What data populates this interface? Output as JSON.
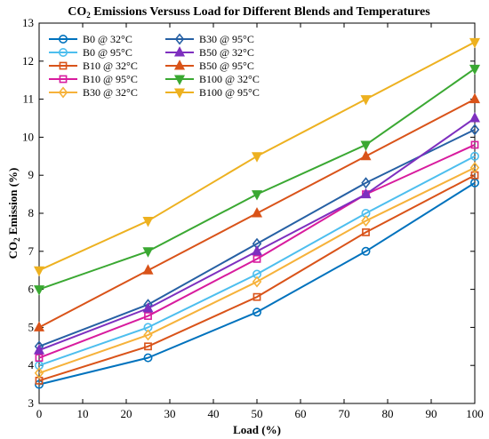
{
  "chart_data": {
    "type": "line",
    "title_main": "CO",
    "title_sub": "2",
    "title_rest": " Emissions Versuss Load for Different Blends and Temperatures",
    "xlabel": "Load (%)",
    "ylabel_main": "CO",
    "ylabel_sub": "2",
    "ylabel_rest": " Emission  (%)",
    "xlim": [
      0,
      100
    ],
    "ylim": [
      3,
      13
    ],
    "xticks": [
      0,
      10,
      20,
      30,
      40,
      50,
      60,
      70,
      80,
      90,
      100
    ],
    "yticks": [
      3,
      4,
      5,
      6,
      7,
      8,
      9,
      10,
      11,
      12,
      13
    ],
    "grid": false,
    "legend_position": "top-left",
    "x": [
      0,
      25,
      50,
      75,
      100
    ],
    "series": [
      {
        "name": "B0 @ 32°C",
        "color": "#0072BD",
        "marker": "circle",
        "values": [
          3.5,
          4.2,
          5.4,
          7.0,
          8.8
        ]
      },
      {
        "name": "B0 @ 95°C",
        "color": "#4DBEEE",
        "marker": "circle",
        "values": [
          4.0,
          5.0,
          6.4,
          8.0,
          9.5
        ]
      },
      {
        "name": "B10 @ 32°C",
        "color": "#D95319",
        "marker": "square",
        "values": [
          3.6,
          4.5,
          5.8,
          7.5,
          9.0
        ]
      },
      {
        "name": "B10 @ 95°C",
        "color": "#D81B9E",
        "marker": "square",
        "values": [
          4.2,
          5.3,
          6.8,
          8.5,
          9.8
        ]
      },
      {
        "name": "B30 @ 32°C",
        "color": "#F6B23A",
        "marker": "diamond",
        "values": [
          3.8,
          4.8,
          6.2,
          7.8,
          9.2
        ]
      },
      {
        "name": "B30 @ 95°C",
        "color": "#2660A4",
        "marker": "diamond",
        "values": [
          4.5,
          5.6,
          7.2,
          8.8,
          10.2
        ]
      },
      {
        "name": "B50 @ 32°C",
        "color": "#7E2FBF",
        "marker": "triangle-up",
        "values": [
          4.4,
          5.5,
          7.0,
          8.5,
          10.5
        ]
      },
      {
        "name": "B50 @ 95°C",
        "color": "#D95319",
        "marker": "triangle-up",
        "values": [
          5.0,
          6.5,
          8.0,
          9.5,
          11.0
        ]
      },
      {
        "name": "B100 @ 32°C",
        "color": "#3AA832",
        "marker": "triangle-down",
        "values": [
          6.0,
          7.0,
          8.5,
          9.8,
          11.8
        ]
      },
      {
        "name": "B100 @ 95°C",
        "color": "#EDB120",
        "marker": "triangle-down",
        "values": [
          6.5,
          7.8,
          9.5,
          11.0,
          12.5
        ]
      }
    ]
  }
}
